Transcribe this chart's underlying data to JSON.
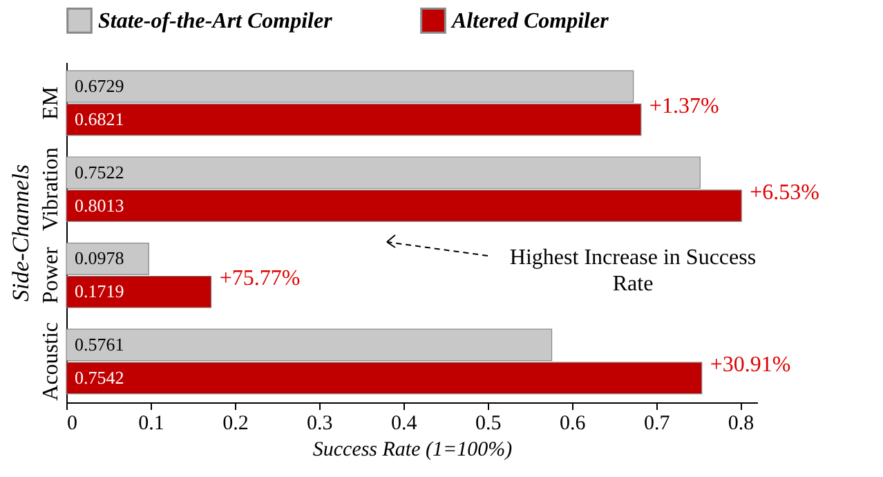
{
  "chart_data": {
    "type": "bar",
    "orientation": "horizontal",
    "xlabel": "Success Rate (1=100%)",
    "ylabel": "Side-Channels",
    "categories": [
      "EM",
      "Vibration",
      "Power",
      "Acoustic"
    ],
    "series": [
      {
        "name": "State-of-the-Art Compiler",
        "color": "#c8c8c8",
        "values": [
          0.6729,
          0.7522,
          0.0978,
          0.5761
        ]
      },
      {
        "name": "Altered Compiler",
        "color": "#c00000",
        "values": [
          0.6821,
          0.8013,
          0.1719,
          0.7542
        ]
      }
    ],
    "data_labels": true,
    "xlim": [
      0,
      0.82
    ],
    "xticks": [
      0,
      0.1,
      0.2,
      0.3,
      0.4,
      0.5,
      0.6,
      0.7,
      0.8
    ],
    "legend": "top",
    "grid": false,
    "annotations": [
      {
        "text": "+1.37%",
        "x": 0.6821,
        "y": "EM"
      },
      {
        "text": "+6.53%",
        "x": 0.8013,
        "y": "Vibration"
      },
      {
        "text": "+75.77%",
        "x": 0.1719,
        "y": "Power"
      },
      {
        "text": "+30.91%",
        "x": 0.7542,
        "y": "Acoustic"
      },
      "Highest Increase in Success Rate"
    ]
  }
}
